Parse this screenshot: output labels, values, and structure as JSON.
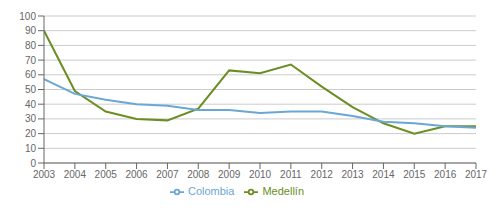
{
  "chart_data": {
    "type": "line",
    "x": [
      2003,
      2004,
      2005,
      2006,
      2007,
      2008,
      2009,
      2010,
      2011,
      2012,
      2013,
      2014,
      2015,
      2016,
      2017
    ],
    "series": [
      {
        "name": "Medellín",
        "color": "#6b8e23",
        "values": [
          90,
          49,
          35,
          30,
          29,
          37,
          63,
          61,
          67,
          52,
          38,
          27,
          20,
          25,
          25
        ]
      },
      {
        "name": "Colombia",
        "color": "#6aa7d4",
        "values": [
          57,
          47,
          43,
          40,
          39,
          36,
          36,
          34,
          35,
          35,
          32,
          28,
          27,
          25,
          24
        ]
      }
    ],
    "xlim": [
      2003,
      2017
    ],
    "xticks": [
      2003,
      2004,
      2005,
      2006,
      2007,
      2008,
      2009,
      2010,
      2011,
      2012,
      2013,
      2014,
      2015,
      2016,
      2017
    ],
    "ylim": [
      0,
      100
    ],
    "yticks": [
      0,
      10,
      20,
      30,
      40,
      50,
      60,
      70,
      80,
      90,
      100
    ],
    "grid": true,
    "legend": "bottom"
  }
}
